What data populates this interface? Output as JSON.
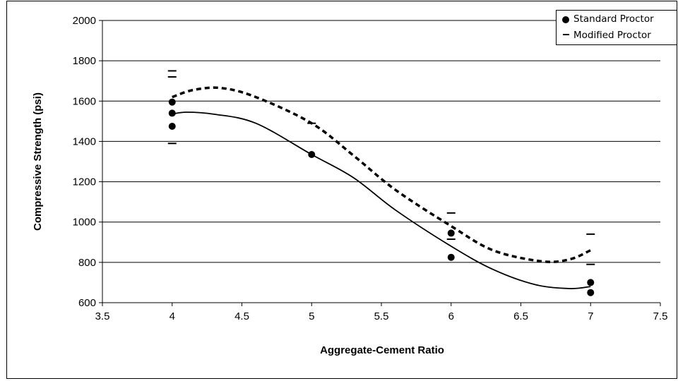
{
  "chart_data": {
    "type": "scatter",
    "xlabel": "Aggregate-Cement Ratio",
    "ylabel": "Compressive Strength (psi)",
    "xlim": [
      3.5,
      7.5
    ],
    "ylim": [
      600,
      2000
    ],
    "x_ticks": [
      3.5,
      4,
      4.5,
      5,
      5.5,
      6,
      6.5,
      7,
      7.5
    ],
    "y_ticks": [
      600,
      800,
      1000,
      1200,
      1400,
      1600,
      1800,
      2000
    ],
    "x_tick_labels": [
      "3.5",
      "4",
      "4.5",
      "5",
      "5.5",
      "6",
      "6.5",
      "7",
      "7.5"
    ],
    "y_tick_labels": [
      "600",
      "800",
      "1000",
      "1200",
      "1400",
      "1600",
      "1800",
      "2000"
    ],
    "grid": "horizontal",
    "legend_position": "top-right",
    "series": [
      {
        "name": "Standard Proctor",
        "marker": "circle",
        "points": [
          {
            "x": 4,
            "y": 1595
          },
          {
            "x": 4,
            "y": 1540
          },
          {
            "x": 4,
            "y": 1475
          },
          {
            "x": 5,
            "y": 1335
          },
          {
            "x": 6,
            "y": 945
          },
          {
            "x": 6,
            "y": 825
          },
          {
            "x": 7,
            "y": 700
          },
          {
            "x": 7,
            "y": 650
          }
        ],
        "trend": {
          "style": "solid",
          "points": [
            {
              "x": 4.0,
              "y": 1535
            },
            {
              "x": 4.1,
              "y": 1545
            },
            {
              "x": 4.3,
              "y": 1535
            },
            {
              "x": 4.6,
              "y": 1490
            },
            {
              "x": 5.0,
              "y": 1335
            },
            {
              "x": 5.3,
              "y": 1220
            },
            {
              "x": 5.6,
              "y": 1060
            },
            {
              "x": 6.0,
              "y": 880
            },
            {
              "x": 6.3,
              "y": 765
            },
            {
              "x": 6.6,
              "y": 690
            },
            {
              "x": 6.85,
              "y": 670
            },
            {
              "x": 7.0,
              "y": 680
            }
          ]
        }
      },
      {
        "name": "Modified Proctor",
        "marker": "dash",
        "points": [
          {
            "x": 4,
            "y": 1750
          },
          {
            "x": 4,
            "y": 1720
          },
          {
            "x": 4,
            "y": 1390
          },
          {
            "x": 5,
            "y": 1490
          },
          {
            "x": 6,
            "y": 1045
          },
          {
            "x": 6,
            "y": 915
          },
          {
            "x": 7,
            "y": 940
          },
          {
            "x": 7,
            "y": 790
          }
        ],
        "trend": {
          "style": "dashed",
          "points": [
            {
              "x": 4.0,
              "y": 1620
            },
            {
              "x": 4.15,
              "y": 1655
            },
            {
              "x": 4.35,
              "y": 1665
            },
            {
              "x": 4.6,
              "y": 1620
            },
            {
              "x": 5.0,
              "y": 1490
            },
            {
              "x": 5.3,
              "y": 1330
            },
            {
              "x": 5.6,
              "y": 1160
            },
            {
              "x": 6.0,
              "y": 980
            },
            {
              "x": 6.3,
              "y": 860
            },
            {
              "x": 6.65,
              "y": 805
            },
            {
              "x": 6.85,
              "y": 815
            },
            {
              "x": 7.0,
              "y": 860
            }
          ]
        }
      }
    ]
  }
}
